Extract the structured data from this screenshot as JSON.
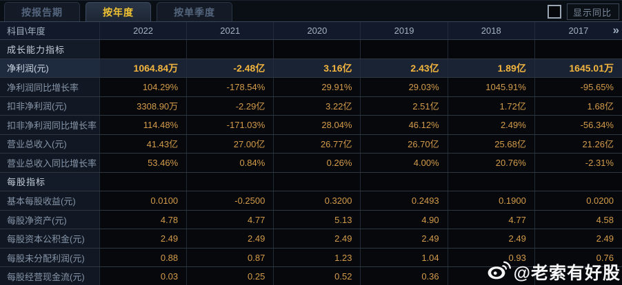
{
  "tabs": [
    {
      "label": "按报告期",
      "active": false
    },
    {
      "label": "按年度",
      "active": true
    },
    {
      "label": "按单季度",
      "active": false
    }
  ],
  "controls": {
    "compare_checkbox_checked": false,
    "compare_label": "显示同比"
  },
  "table": {
    "corner_label": "科目\\年度",
    "years": [
      "2022",
      "2021",
      "2020",
      "2019",
      "2018",
      "2017"
    ],
    "more_icon": "»",
    "rows": [
      {
        "type": "section",
        "label": "成长能力指标",
        "values": [
          "",
          "",
          "",
          "",
          "",
          ""
        ]
      },
      {
        "type": "highlight",
        "label": "净利润(元)",
        "values": [
          "1064.84万",
          "-2.48亿",
          "3.16亿",
          "2.43亿",
          "1.89亿",
          "1645.01万"
        ]
      },
      {
        "type": "data",
        "label": "净利润同比增长率",
        "values": [
          "104.29%",
          "-178.54%",
          "29.91%",
          "29.03%",
          "1045.91%",
          "-95.65%"
        ]
      },
      {
        "type": "data",
        "label": "扣非净利润(元)",
        "values": [
          "3308.90万",
          "-2.29亿",
          "3.22亿",
          "2.51亿",
          "1.72亿",
          "1.68亿"
        ]
      },
      {
        "type": "data",
        "label": "扣非净利润同比增长率",
        "values": [
          "114.48%",
          "-171.03%",
          "28.04%",
          "46.12%",
          "2.49%",
          "-56.34%"
        ]
      },
      {
        "type": "data",
        "label": "营业总收入(元)",
        "values": [
          "41.43亿",
          "27.00亿",
          "26.77亿",
          "26.70亿",
          "25.68亿",
          "21.26亿"
        ]
      },
      {
        "type": "data",
        "label": "营业总收入同比增长率",
        "values": [
          "53.46%",
          "0.84%",
          "0.26%",
          "4.00%",
          "20.76%",
          "-2.31%"
        ]
      },
      {
        "type": "section",
        "label": "每股指标",
        "values": [
          "",
          "",
          "",
          "",
          "",
          ""
        ]
      },
      {
        "type": "data",
        "label": "基本每股收益(元)",
        "values": [
          "0.0100",
          "-0.2500",
          "0.3200",
          "0.2493",
          "0.1900",
          "0.0200"
        ]
      },
      {
        "type": "data",
        "label": "每股净资产(元)",
        "values": [
          "4.78",
          "4.77",
          "5.13",
          "4.90",
          "4.77",
          "4.58"
        ]
      },
      {
        "type": "data",
        "label": "每股资本公积金(元)",
        "values": [
          "2.49",
          "2.49",
          "2.49",
          "2.49",
          "2.49",
          "2.49"
        ]
      },
      {
        "type": "data",
        "label": "每股未分配利润(元)",
        "values": [
          "0.88",
          "0.87",
          "1.23",
          "1.04",
          "0.93",
          "0.76"
        ]
      },
      {
        "type": "data",
        "label": "每股经营现金流(元)",
        "values": [
          "0.03",
          "0.25",
          "0.52",
          "0.36",
          "",
          ""
        ]
      }
    ]
  },
  "watermark": {
    "text": "@老索有好股",
    "icon": "weibo-icon"
  },
  "colors": {
    "accent_gold": "#f2c232",
    "value_orange": "#d49c4a",
    "highlight_gold": "#f3b53e",
    "highlight_row_bg": "#192334",
    "header_bg": "#11192a",
    "page_bg": "#070a0f"
  }
}
